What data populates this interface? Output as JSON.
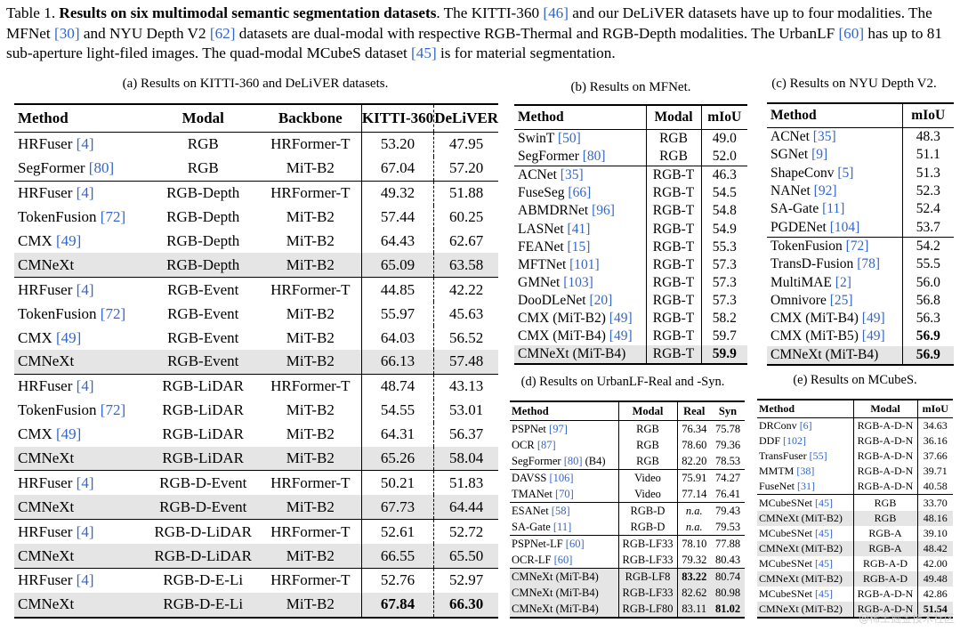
{
  "caption": {
    "lead": "Table 1. ",
    "title": "Results on six multimodal semantic segmentation datasets",
    "sentences": [
      {
        "pre": ". The KITTI-360 ",
        "cite": "[46]",
        "post": " and our DeLiVER datasets have up to four modalities. The MFNet "
      },
      {
        "pre": "",
        "cite": "[30]",
        "post": " and NYU Depth V2 "
      },
      {
        "pre": "",
        "cite": "[62]",
        "post": " datasets are dual-modal with respective RGB-Thermal and RGB-Depth modalities. The UrbanLF "
      },
      {
        "pre": "",
        "cite": "[60]",
        "post": " has up to 81 sub-aperture light-filed images. The quad-modal MCubeS dataset "
      },
      {
        "pre": "",
        "cite": "[45]",
        "post": " is for material segmentation."
      }
    ]
  },
  "table_a": {
    "title": "(a) Results on KITTI-360 and DeLiVER datasets.",
    "headers": [
      "Method",
      "Modal",
      "Backbone",
      "KITTI-360",
      "DeLiVER"
    ],
    "groups": [
      [
        [
          "HRFuser",
          "[4]",
          "RGB",
          "HRFormer-T",
          "53.20",
          "47.95",
          ""
        ],
        [
          "SegFormer",
          "[80]",
          "RGB",
          "MiT-B2",
          "67.04",
          "57.20",
          ""
        ]
      ],
      [
        [
          "HRFuser",
          "[4]",
          "RGB-Depth",
          "HRFormer-T",
          "49.32",
          "51.88",
          ""
        ],
        [
          "TokenFusion",
          "[72]",
          "RGB-Depth",
          "MiT-B2",
          "57.44",
          "60.25",
          ""
        ],
        [
          "CMX",
          "[49]",
          "RGB-Depth",
          "MiT-B2",
          "64.43",
          "62.67",
          ""
        ],
        [
          "CMNeXt",
          "",
          "RGB-Depth",
          "MiT-B2",
          "65.09",
          "63.58",
          "hl"
        ]
      ],
      [
        [
          "HRFuser",
          "[4]",
          "RGB-Event",
          "HRFormer-T",
          "44.85",
          "42.22",
          ""
        ],
        [
          "TokenFusion",
          "[72]",
          "RGB-Event",
          "MiT-B2",
          "55.97",
          "45.63",
          ""
        ],
        [
          "CMX",
          "[49]",
          "RGB-Event",
          "MiT-B2",
          "64.03",
          "56.52",
          ""
        ],
        [
          "CMNeXt",
          "",
          "RGB-Event",
          "MiT-B2",
          "66.13",
          "57.48",
          "hl"
        ]
      ],
      [
        [
          "HRFuser",
          "[4]",
          "RGB-LiDAR",
          "HRFormer-T",
          "48.74",
          "43.13",
          ""
        ],
        [
          "TokenFusion",
          "[72]",
          "RGB-LiDAR",
          "MiT-B2",
          "54.55",
          "53.01",
          ""
        ],
        [
          "CMX",
          "[49]",
          "RGB-LiDAR",
          "MiT-B2",
          "64.31",
          "56.37",
          ""
        ],
        [
          "CMNeXt",
          "",
          "RGB-LiDAR",
          "MiT-B2",
          "65.26",
          "58.04",
          "hl"
        ]
      ],
      [
        [
          "HRFuser",
          "[4]",
          "RGB-D-Event",
          "HRFormer-T",
          "50.21",
          "51.83",
          ""
        ],
        [
          "CMNeXt",
          "",
          "RGB-D-Event",
          "MiT-B2",
          "67.73",
          "64.44",
          "hl"
        ]
      ],
      [
        [
          "HRFuser",
          "[4]",
          "RGB-D-LiDAR",
          "HRFormer-T",
          "52.61",
          "52.72",
          ""
        ],
        [
          "CMNeXt",
          "",
          "RGB-D-LiDAR",
          "MiT-B2",
          "66.55",
          "65.50",
          "hl"
        ]
      ],
      [
        [
          "HRFuser",
          "[4]",
          "RGB-D-E-Li",
          "HRFormer-T",
          "52.76",
          "52.97",
          ""
        ],
        [
          "CMNeXt",
          "",
          "RGB-D-E-Li",
          "MiT-B2",
          "67.84",
          "66.30",
          "hl bold"
        ]
      ]
    ]
  },
  "table_b": {
    "title": "(b) Results on MFNet.",
    "headers": [
      "Method",
      "Modal",
      "mIoU"
    ],
    "groups": [
      [
        [
          "SwinT",
          "[50]",
          "RGB",
          "49.0",
          ""
        ],
        [
          "SegFormer",
          "[80]",
          "RGB",
          "52.0",
          ""
        ]
      ],
      [
        [
          "ACNet",
          "[35]",
          "RGB-T",
          "46.3",
          ""
        ],
        [
          "FuseSeg",
          "[66]",
          "RGB-T",
          "54.5",
          ""
        ],
        [
          "ABMDRNet",
          "[96]",
          "RGB-T",
          "54.8",
          ""
        ],
        [
          "LASNet",
          "[41]",
          "RGB-T",
          "54.9",
          ""
        ],
        [
          "FEANet",
          "[15]",
          "RGB-T",
          "55.3",
          ""
        ],
        [
          "MFTNet",
          "[101]",
          "RGB-T",
          "57.3",
          ""
        ],
        [
          "GMNet",
          "[103]",
          "RGB-T",
          "57.3",
          ""
        ],
        [
          "DooDLeNet",
          "[20]",
          "RGB-T",
          "57.3",
          ""
        ],
        [
          "CMX (MiT-B2)",
          "[49]",
          "RGB-T",
          "58.2",
          ""
        ],
        [
          "CMX (MiT-B4)",
          "[49]",
          "RGB-T",
          "59.7",
          ""
        ],
        [
          "CMNeXt (MiT-B4)",
          "",
          "RGB-T",
          "59.9",
          "hl bold"
        ]
      ]
    ]
  },
  "table_c": {
    "title": "(c) Results on NYU Depth V2.",
    "headers": [
      "Method",
      "mIoU"
    ],
    "groups": [
      [
        [
          "ACNet",
          "[35]",
          "48.3",
          ""
        ],
        [
          "SGNet",
          "[9]",
          "51.1",
          ""
        ],
        [
          "ShapeConv",
          "[5]",
          "51.3",
          ""
        ],
        [
          "NANet",
          "[92]",
          "52.3",
          ""
        ],
        [
          "SA-Gate",
          "[11]",
          "52.4",
          ""
        ],
        [
          "PGDENet",
          "[104]",
          "53.7",
          ""
        ]
      ],
      [
        [
          "TokenFusion",
          "[72]",
          "54.2",
          ""
        ],
        [
          "TransD-Fusion",
          "[78]",
          "55.5",
          ""
        ],
        [
          "MultiMAE",
          "[2]",
          "56.0",
          ""
        ],
        [
          "Omnivore",
          "[25]",
          "56.8",
          ""
        ],
        [
          "CMX (MiT-B4)",
          "[49]",
          "56.3",
          ""
        ],
        [
          "CMX (MiT-B5)",
          "[49]",
          "56.9",
          "bold"
        ],
        [
          "CMNeXt (MiT-B4)",
          "",
          "56.9",
          "hl bold"
        ]
      ]
    ]
  },
  "table_d": {
    "title": "(d) Results on UrbanLF-Real and -Syn.",
    "headers": [
      "Method",
      "Modal",
      "Real",
      "Syn"
    ],
    "groups": [
      [
        [
          "PSPNet",
          "[97]",
          "RGB",
          "76.34",
          "75.78",
          ""
        ],
        [
          "OCR",
          "[87]",
          "RGB",
          "78.60",
          "79.36",
          ""
        ],
        [
          "SegFormer",
          "[80] (B4)",
          "RGB",
          "82.20",
          "78.53",
          ""
        ]
      ],
      [
        [
          "DAVSS",
          "[106]",
          "Video",
          "75.91",
          "74.27",
          ""
        ],
        [
          "TMANet",
          "[70]",
          "Video",
          "77.14",
          "76.41",
          ""
        ]
      ],
      [
        [
          "ESANet",
          "[58]",
          "RGB-D",
          "n.a.",
          "79.43",
          ""
        ],
        [
          "SA-Gate",
          "[11]",
          "RGB-D",
          "n.a.",
          "79.53",
          ""
        ]
      ],
      [
        [
          "PSPNet-LF",
          "[60]",
          "RGB-LF33",
          "78.10",
          "77.88",
          ""
        ],
        [
          "OCR-LF",
          "[60]",
          "RGB-LF33",
          "79.32",
          "80.43",
          ""
        ]
      ],
      [
        [
          "CMNeXt (MiT-B4)",
          "",
          "RGB-LF8",
          "83.22",
          "80.74",
          "hl"
        ],
        [
          "CMNeXt (MiT-B4)",
          "",
          "RGB-LF33",
          "82.62",
          "80.98",
          "hl"
        ],
        [
          "CMNeXt (MiT-B4)",
          "",
          "RGB-LF80",
          "83.11",
          "81.02",
          "hl"
        ]
      ]
    ]
  },
  "table_e": {
    "title": "(e) Results on MCubeS.",
    "headers": [
      "Method",
      "Modal",
      "mIoU"
    ],
    "groups": [
      [
        [
          "DRConv",
          "[6]",
          "RGB-A-D-N",
          "34.63",
          ""
        ],
        [
          "DDF",
          "[102]",
          "RGB-A-D-N",
          "36.16",
          ""
        ],
        [
          "TransFuser",
          "[55]",
          "RGB-A-D-N",
          "37.66",
          ""
        ],
        [
          "MMTM",
          "[38]",
          "RGB-A-D-N",
          "39.71",
          ""
        ],
        [
          "FuseNet",
          "[31]",
          "RGB-A-D-N",
          "40.58",
          ""
        ]
      ],
      [
        [
          "MCubeSNet",
          "[45]",
          "RGB",
          "33.70",
          ""
        ],
        [
          "CMNeXt (MiT-B2)",
          "",
          "RGB",
          "48.16",
          "hl"
        ],
        [
          "MCubeSNet",
          "[45]",
          "RGB-A",
          "39.10",
          ""
        ],
        [
          "CMNeXt (MiT-B2)",
          "",
          "RGB-A",
          "48.42",
          "hl"
        ],
        [
          "MCubeSNet",
          "[45]",
          "RGB-A-D",
          "42.00",
          ""
        ],
        [
          "CMNeXt (MiT-B2)",
          "",
          "RGB-A-D",
          "49.48",
          "hl"
        ],
        [
          "MCubeSNet",
          "[45]",
          "RGB-A-D-N",
          "42.86",
          ""
        ],
        [
          "CMNeXt (MiT-B2)",
          "",
          "RGB-A-D-N",
          "51.54",
          "hl bold"
        ]
      ]
    ]
  },
  "watermark": "@稀土掘金技术社区"
}
